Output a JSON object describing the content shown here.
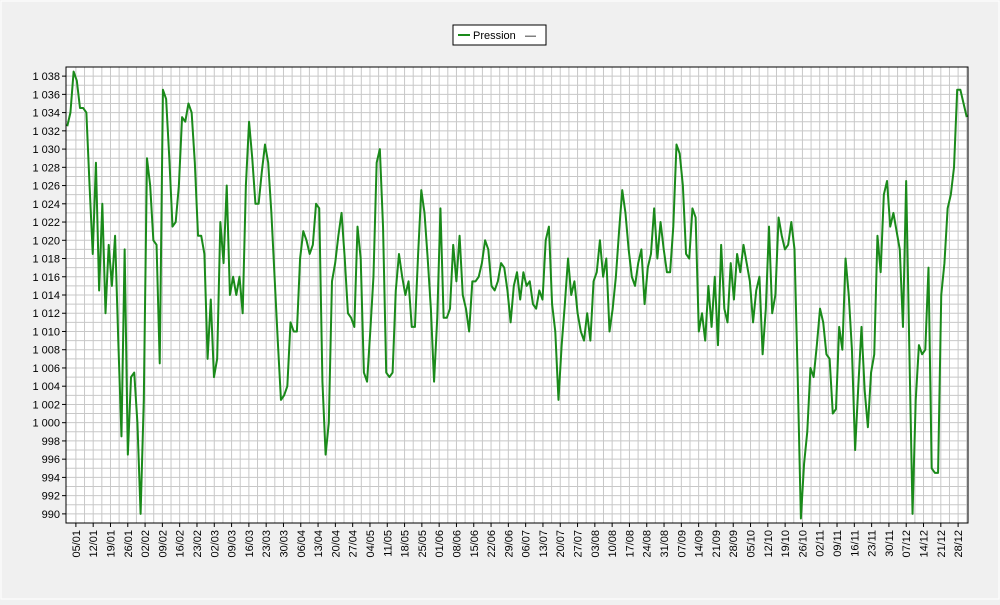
{
  "chart_data": {
    "type": "line",
    "title": "",
    "xlabel": "",
    "ylabel": "",
    "ylim": [
      989,
      1039
    ],
    "grid": true,
    "legend": {
      "position": "top-center",
      "entries": [
        {
          "label": "Pression",
          "marker": "—"
        }
      ]
    },
    "y_ticks": [
      "990",
      "992",
      "994",
      "996",
      "998",
      "1 000",
      "1 002",
      "1 004",
      "1 006",
      "1 008",
      "1 010",
      "1 012",
      "1 014",
      "1 016",
      "1 018",
      "1 020",
      "1 022",
      "1 024",
      "1 026",
      "1 028",
      "1 030",
      "1 032",
      "1 034",
      "1 036",
      "1 038"
    ],
    "x_ticks": [
      "05/01",
      "12/01",
      "19/01",
      "26/01",
      "02/02",
      "09/02",
      "16/02",
      "23/02",
      "02/03",
      "09/03",
      "16/03",
      "23/03",
      "30/03",
      "06/04",
      "13/04",
      "20/04",
      "27/04",
      "04/05",
      "11/05",
      "18/05",
      "25/05",
      "01/06",
      "08/06",
      "15/06",
      "22/06",
      "29/06",
      "06/07",
      "13/07",
      "20/07",
      "27/07",
      "03/08",
      "10/08",
      "17/08",
      "24/08",
      "31/08",
      "07/09",
      "14/09",
      "21/09",
      "28/09",
      "05/10",
      "12/10",
      "19/10",
      "26/10",
      "02/11",
      "09/11",
      "16/11",
      "23/11",
      "30/11",
      "07/12",
      "14/12",
      "21/12",
      "28/12"
    ],
    "series": [
      {
        "name": "Pression",
        "color": "#1a8a1a",
        "x_start_day": 1,
        "values": [
          1032.5,
          1034.0,
          1038.5,
          1037.5,
          1034.5,
          1034.5,
          1034.0,
          1026.0,
          1018.5,
          1028.5,
          1014.5,
          1024.0,
          1012.0,
          1019.5,
          1015.0,
          1020.5,
          1009.0,
          998.5,
          1019.0,
          996.5,
          1005.0,
          1005.5,
          1000.0,
          990.0,
          1002.5,
          1029.0,
          1026.0,
          1020.0,
          1019.5,
          1006.5,
          1036.5,
          1035.5,
          1029.0,
          1021.5,
          1022.0,
          1026.0,
          1033.5,
          1033.0,
          1035.0,
          1034.0,
          1028.5,
          1020.5,
          1020.5,
          1018.5,
          1007.0,
          1013.5,
          1005.0,
          1007.0,
          1022.0,
          1017.5,
          1026.0,
          1014.0,
          1016.0,
          1014.0,
          1016.0,
          1012.0,
          1026.0,
          1033.0,
          1029.0,
          1024.0,
          1024.0,
          1027.5,
          1030.5,
          1028.5,
          1023.0,
          1016.0,
          1009.0,
          1002.5,
          1003.0,
          1004.0,
          1011.0,
          1010.0,
          1010.0,
          1018.0,
          1021.0,
          1020.0,
          1018.5,
          1019.5,
          1024.0,
          1023.5,
          1004.5,
          996.5,
          1000.0,
          1015.5,
          1017.5,
          1020.5,
          1023.0,
          1018.0,
          1012.0,
          1011.5,
          1010.5,
          1021.5,
          1018.0,
          1005.5,
          1004.5,
          1010.0,
          1016.0,
          1028.5,
          1030.0,
          1021.5,
          1005.5,
          1005.0,
          1005.5,
          1014.5,
          1018.5,
          1016.0,
          1014.0,
          1015.5,
          1010.5,
          1010.5,
          1018.5,
          1025.5,
          1023.0,
          1018.0,
          1012.5,
          1004.5,
          1011.5,
          1023.5,
          1011.5,
          1011.5,
          1012.5,
          1019.5,
          1015.5,
          1020.5,
          1014.0,
          1012.5,
          1010.0,
          1015.5,
          1015.5,
          1016.0,
          1017.5,
          1020.0,
          1019.0,
          1015.0,
          1014.5,
          1015.5,
          1017.5,
          1017.0,
          1014.5,
          1011.0,
          1015.0,
          1016.5,
          1013.5,
          1016.5,
          1015.0,
          1015.5,
          1013.0,
          1012.5,
          1014.5,
          1013.5,
          1020.0,
          1021.5,
          1013.0,
          1010.0,
          1002.5,
          1008.5,
          1013.0,
          1018.0,
          1014.0,
          1015.5,
          1012.0,
          1010.0,
          1009.0,
          1012.0,
          1009.0,
          1015.5,
          1016.5,
          1020.0,
          1016.0,
          1018.0,
          1010.0,
          1012.5,
          1016.0,
          1021.0,
          1025.5,
          1023.0,
          1019.0,
          1016.0,
          1015.0,
          1017.5,
          1019.0,
          1013.0,
          1017.0,
          1018.5,
          1023.5,
          1018.0,
          1022.0,
          1019.0,
          1016.5,
          1016.5,
          1021.5,
          1030.5,
          1029.5,
          1026.0,
          1018.5,
          1018.0,
          1023.5,
          1022.5,
          1010.0,
          1012.0,
          1009.0,
          1015.0,
          1010.5,
          1016.0,
          1008.5,
          1019.5,
          1012.5,
          1011.0,
          1017.5,
          1013.5,
          1018.5,
          1016.5,
          1019.5,
          1017.5,
          1015.5,
          1011.0,
          1014.5,
          1016.0,
          1007.5,
          1012.5,
          1021.5,
          1012.0,
          1014.0,
          1022.5,
          1020.5,
          1019.0,
          1019.5,
          1022.0,
          1019.0,
          1005.0,
          989.5,
          995.5,
          999.0,
          1006.0,
          1005.0,
          1008.5,
          1012.5,
          1011.0,
          1007.5,
          1007.0,
          1001.0,
          1001.5,
          1010.5,
          1008.0,
          1018.0,
          1014.0,
          1008.0,
          997.0,
          1004.0,
          1010.5,
          1003.5,
          999.5,
          1005.5,
          1007.5,
          1020.5,
          1016.5,
          1025.0,
          1026.5,
          1021.5,
          1023.0,
          1021.0,
          1019.0,
          1010.5,
          1026.5,
          1008.0,
          990.0,
          1002.5,
          1008.5,
          1007.5,
          1008.0,
          1017.0,
          995.0,
          994.5,
          994.5,
          1014.0,
          1017.5,
          1023.5,
          1025.0,
          1028.0,
          1036.5,
          1036.5,
          1035.0,
          1033.5
        ]
      }
    ]
  }
}
